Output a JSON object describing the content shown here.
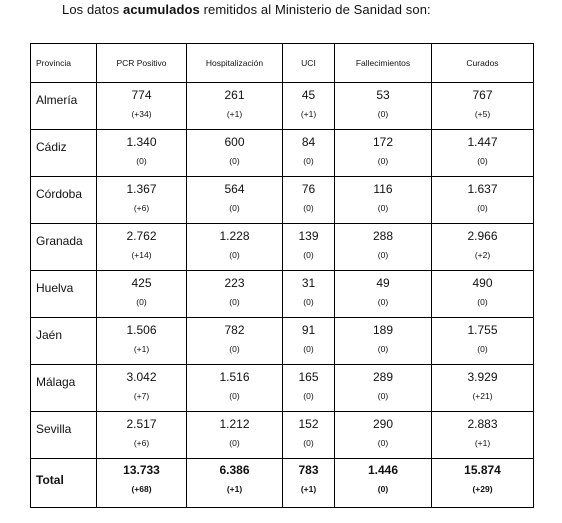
{
  "intro": {
    "before": "Los datos ",
    "bold": "acumulados",
    "after": " remitidos al Ministerio de Sanidad son:"
  },
  "table": {
    "headers": [
      "Provincia",
      "PCR Positivo",
      "Hospitalización",
      "UCI",
      "Fallecimientos",
      "Curados"
    ],
    "rows": [
      {
        "provincia": "Almería",
        "pcr": "774",
        "pcr_delta": "(+34)",
        "hosp": "261",
        "hosp_delta": "(+1)",
        "uci": "45",
        "uci_delta": "(+1)",
        "fall": "53",
        "fall_delta": "(0)",
        "cur": "767",
        "cur_delta": "(+5)"
      },
      {
        "provincia": "Cádiz",
        "pcr": "1.340",
        "pcr_delta": "(0)",
        "hosp": "600",
        "hosp_delta": "(0)",
        "uci": "84",
        "uci_delta": "(0)",
        "fall": "172",
        "fall_delta": "(0)",
        "cur": "1.447",
        "cur_delta": "(0)"
      },
      {
        "provincia": "Córdoba",
        "pcr": "1.367",
        "pcr_delta": "(+6)",
        "hosp": "564",
        "hosp_delta": "(0)",
        "uci": "76",
        "uci_delta": "(0)",
        "fall": "116",
        "fall_delta": "(0)",
        "cur": "1.637",
        "cur_delta": "(0)"
      },
      {
        "provincia": "Granada",
        "pcr": "2.762",
        "pcr_delta": "(+14)",
        "hosp": "1.228",
        "hosp_delta": "(0)",
        "uci": "139",
        "uci_delta": "(0)",
        "fall": "288",
        "fall_delta": "(0)",
        "cur": "2.966",
        "cur_delta": "(+2)"
      },
      {
        "provincia": "Huelva",
        "pcr": "425",
        "pcr_delta": "(0)",
        "hosp": "223",
        "hosp_delta": "(0)",
        "uci": "31",
        "uci_delta": "(0)",
        "fall": "49",
        "fall_delta": "(0)",
        "cur": "490",
        "cur_delta": "(0)"
      },
      {
        "provincia": "Jaén",
        "pcr": "1.506",
        "pcr_delta": "(+1)",
        "hosp": "782",
        "hosp_delta": "(0)",
        "uci": "91",
        "uci_delta": "(0)",
        "fall": "189",
        "fall_delta": "(0)",
        "cur": "1.755",
        "cur_delta": "(0)"
      },
      {
        "provincia": "Málaga",
        "pcr": "3.042",
        "pcr_delta": "(+7)",
        "hosp": "1.516",
        "hosp_delta": "(0)",
        "uci": "165",
        "uci_delta": "(0)",
        "fall": "289",
        "fall_delta": "(0)",
        "cur": "3.929",
        "cur_delta": "(+21)"
      },
      {
        "provincia": "Sevilla",
        "pcr": "2.517",
        "pcr_delta": "(+6)",
        "hosp": "1.212",
        "hosp_delta": "(0)",
        "uci": "152",
        "uci_delta": "(0)",
        "fall": "290",
        "fall_delta": "(0)",
        "cur": "2.883",
        "cur_delta": "(+1)"
      }
    ],
    "total": {
      "provincia": "Total",
      "pcr": "13.733",
      "pcr_delta": "(+68)",
      "hosp": "6.386",
      "hosp_delta": "(+1)",
      "uci": "783",
      "uci_delta": "(+1)",
      "fall": "1.446",
      "fall_delta": "(0)",
      "cur": "15.874",
      "cur_delta": "(+29)"
    }
  }
}
